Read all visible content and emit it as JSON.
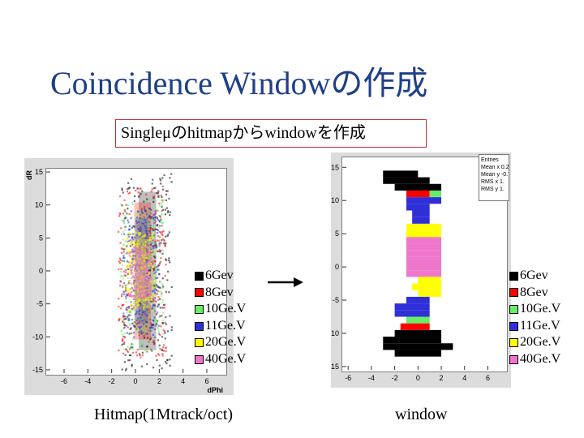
{
  "title": "Coincidence Windowの作成",
  "subtitle": "Singleμのhitmapからwindowを作成",
  "legend": [
    {
      "label": "6Gev",
      "color": "#000000"
    },
    {
      "label": "8Gev",
      "color": "#ff0000"
    },
    {
      "label": "10Ge.V",
      "color": "#66ee66"
    },
    {
      "label": "11Ge.V",
      "color": "#2f2fd8"
    },
    {
      "label": "20Ge.V",
      "color": "#ffff00"
    },
    {
      "label": "40Ge.V",
      "color": "#ee77cc"
    }
  ],
  "captions": {
    "left": "Hitmap(1Mtrack/oct)",
    "right": "window"
  },
  "stats_box": {
    "lines": [
      "Entries",
      "Mean x  0.2",
      "Mean y  -0.7",
      "RMS x  1.",
      "RMS y  1."
    ]
  },
  "chart_data": [
    {
      "type": "heatmap",
      "title": "",
      "xlabel": "dPhi",
      "ylabel": "dR",
      "xlim": [
        -7.5,
        7.5
      ],
      "ylim": [
        -15.5,
        15.5
      ],
      "xticks": [
        -6,
        -4,
        -2,
        0,
        2,
        4,
        6
      ],
      "yticks": [
        -15,
        -10,
        -5,
        0,
        5,
        10,
        15
      ],
      "description": "scattered hit points per momentum",
      "bands": [
        {
          "series": "6Gev",
          "ymin": -15,
          "ymax": 15,
          "xmin": -1.2,
          "xmax": 3.0
        },
        {
          "series": "8Gev",
          "ymin": -13,
          "ymax": 13,
          "xmin": -1.5,
          "xmax": 2.5
        },
        {
          "series": "10Ge.V",
          "ymin": -12,
          "ymax": 11,
          "xmin": -1.3,
          "xmax": 2.3
        },
        {
          "series": "11Ge.V",
          "ymin": -10,
          "ymax": 10,
          "xmin": -1.1,
          "xmax": 2.0
        },
        {
          "series": "20Ge.V",
          "ymin": -6,
          "ymax": 6,
          "xmin": -0.8,
          "xmax": 1.6
        },
        {
          "series": "40Ge.V",
          "ymin": -4,
          "ymax": 4,
          "xmin": -0.6,
          "xmax": 1.3
        }
      ]
    },
    {
      "type": "heatmap",
      "title": "",
      "xlabel": "",
      "ylabel": "",
      "xlim": [
        -6.5,
        7.5
      ],
      "ylim": [
        -15.5,
        16.5
      ],
      "xticks": [
        -6,
        -4,
        -2,
        0,
        2,
        4,
        6
      ],
      "yticks": [
        -15,
        -10,
        -5,
        0,
        5,
        10,
        15
      ],
      "rows": [
        {
          "y": 14,
          "series": "6Gev",
          "xmin": -3,
          "xmax": 0
        },
        {
          "y": 13,
          "series": "6Gev",
          "xmin": -3,
          "xmax": 1
        },
        {
          "y": 12,
          "series": "6Gev",
          "xmin": -2,
          "xmax": 2
        },
        {
          "y": 11,
          "series": "8Gev",
          "xmin": -1,
          "xmax": 1
        },
        {
          "y": 11,
          "series": "10Ge.V",
          "xmin": 1,
          "xmax": 2
        },
        {
          "y": 10,
          "series": "11Ge.V",
          "xmin": -1,
          "xmax": 2
        },
        {
          "y": 9,
          "series": "11Ge.V",
          "xmin": -1,
          "xmax": 1
        },
        {
          "y": 8,
          "series": "11Ge.V",
          "xmin": -0.5,
          "xmax": 1
        },
        {
          "y": 7,
          "series": "11Ge.V",
          "xmin": -0.5,
          "xmax": 1
        },
        {
          "y": 6,
          "series": "20Ge.V",
          "xmin": -1,
          "xmax": 2
        },
        {
          "y": 5,
          "series": "20Ge.V",
          "xmin": -1,
          "xmax": 2
        },
        {
          "y": 4,
          "series": "40Ge.V",
          "xmin": -1,
          "xmax": 2
        },
        {
          "y": 3,
          "series": "40Ge.V",
          "xmin": -1,
          "xmax": 2
        },
        {
          "y": 2,
          "series": "40Ge.V",
          "xmin": -1,
          "xmax": 2
        },
        {
          "y": 1,
          "series": "40Ge.V",
          "xmin": -1,
          "xmax": 2
        },
        {
          "y": 0,
          "series": "40Ge.V",
          "xmin": -1,
          "xmax": 2
        },
        {
          "y": -1,
          "series": "40Ge.V",
          "xmin": -1,
          "xmax": 2
        },
        {
          "y": -2,
          "series": "20Ge.V",
          "xmin": 0,
          "xmax": 2
        },
        {
          "y": -3,
          "series": "20Ge.V",
          "xmin": -0.5,
          "xmax": 2
        },
        {
          "y": -4,
          "series": "20Ge.V",
          "xmin": 0,
          "xmax": 2
        },
        {
          "y": -5,
          "series": "11Ge.V",
          "xmin": -1,
          "xmax": 1
        },
        {
          "y": -6,
          "series": "11Ge.V",
          "xmin": -2,
          "xmax": 1
        },
        {
          "y": -7,
          "series": "11Ge.V",
          "xmin": -2,
          "xmax": 1
        },
        {
          "y": -8,
          "series": "10Ge.V",
          "xmin": -1,
          "xmax": 1
        },
        {
          "y": -9,
          "series": "8Gev",
          "xmin": -1.5,
          "xmax": 1
        },
        {
          "y": -10,
          "series": "6Gev",
          "xmin": -2,
          "xmax": 2
        },
        {
          "y": -11,
          "series": "6Gev",
          "xmin": -3,
          "xmax": 2
        },
        {
          "y": -12,
          "series": "6Gev",
          "xmin": -3,
          "xmax": 3
        },
        {
          "y": -13,
          "series": "6Gev",
          "xmin": -2,
          "xmax": 2
        }
      ]
    }
  ]
}
